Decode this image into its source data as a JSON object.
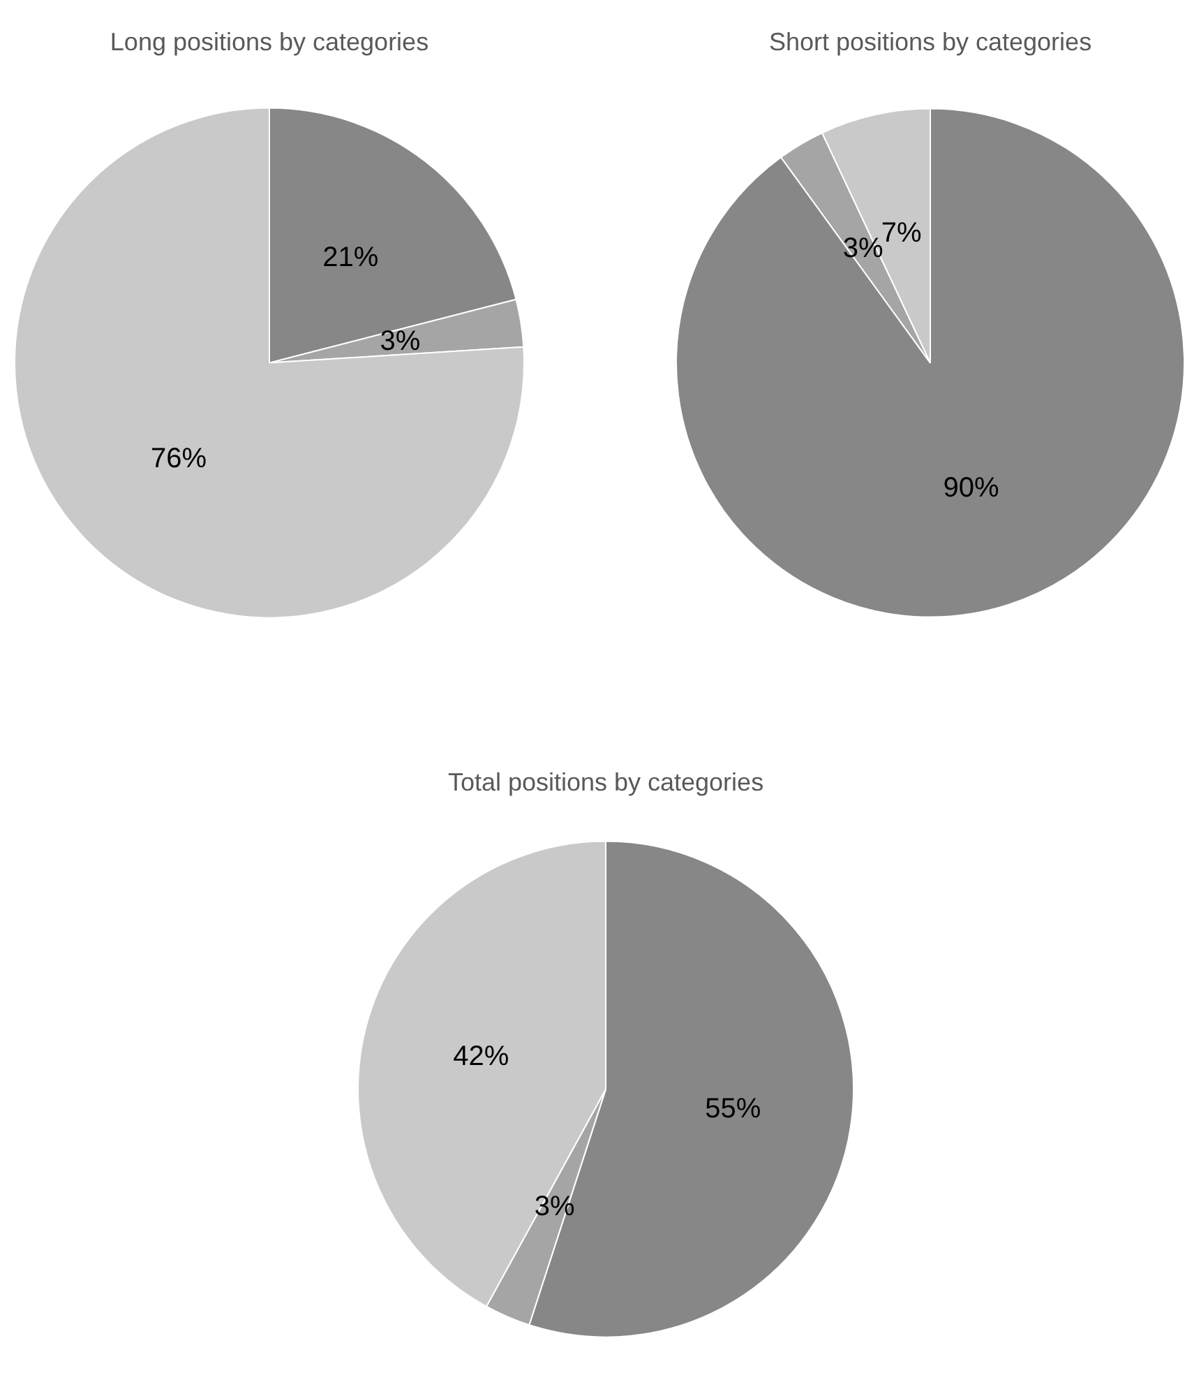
{
  "chart_data": [
    {
      "type": "pie",
      "title": "Long positions by categories",
      "categories": [
        null,
        null,
        null
      ],
      "values": [
        21,
        3,
        76
      ],
      "colors": [
        "#878787",
        "#a5a5a5",
        "#c9c9c9"
      ],
      "value_labels": [
        "21%",
        "3%",
        "76%"
      ],
      "legend": false
    },
    {
      "type": "pie",
      "title": "Short positions by categories",
      "categories": [
        null,
        null,
        null
      ],
      "values": [
        90,
        3,
        7
      ],
      "colors": [
        "#878787",
        "#a5a5a5",
        "#c9c9c9"
      ],
      "value_labels": [
        "90%",
        "3%",
        "7%"
      ],
      "legend": false
    },
    {
      "type": "pie",
      "title": "Total positions by categories",
      "categories": [
        null,
        null,
        null
      ],
      "values": [
        55,
        3,
        42
      ],
      "colors": [
        "#878787",
        "#a5a5a5",
        "#c9c9c9"
      ],
      "value_labels": [
        "55%",
        "3%",
        "42%"
      ],
      "legend": false
    }
  ]
}
